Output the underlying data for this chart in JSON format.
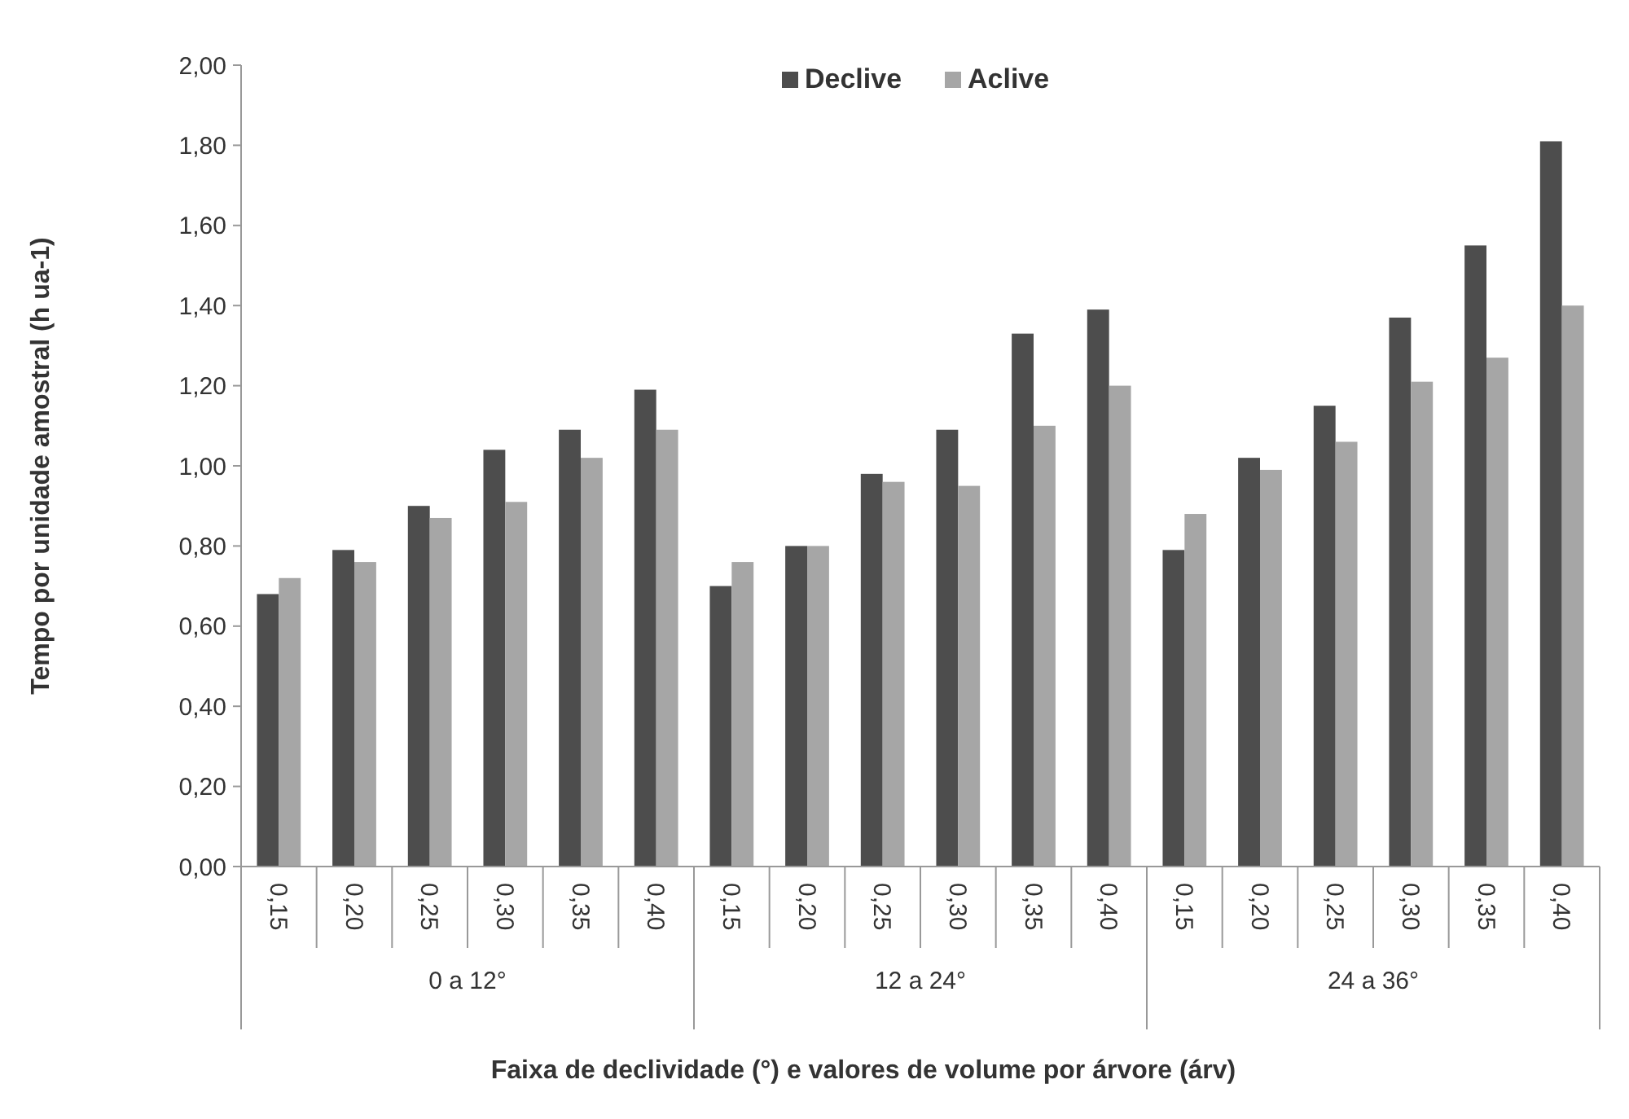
{
  "chart_data": {
    "type": "bar",
    "xlabel": "Faixa de declividade (°) e valores de volume por árvore (árv)",
    "ylabel": "Tempo por unidade amostral (h ua-1)",
    "categories": [
      "0,15",
      "0,20",
      "0,25",
      "0,30",
      "0,35",
      "0,40",
      "0,15",
      "0,20",
      "0,25",
      "0,30",
      "0,35",
      "0,40",
      "0,15",
      "0,20",
      "0,25",
      "0,30",
      "0,35",
      "0,40"
    ],
    "annotations": [
      "0 a 12°",
      "12 a 24°",
      "24 a 36°"
    ],
    "series": [
      {
        "name": "Declive",
        "color": "#4d4d4d",
        "values": [
          0.68,
          0.79,
          0.9,
          1.04,
          1.09,
          1.19,
          0.7,
          0.8,
          0.98,
          1.09,
          1.33,
          1.39,
          0.79,
          1.02,
          1.15,
          1.37,
          1.55,
          1.81
        ]
      },
      {
        "name": "Aclive",
        "color": "#a6a6a6",
        "values": [
          0.72,
          0.76,
          0.87,
          0.91,
          1.02,
          1.09,
          0.76,
          0.8,
          0.96,
          0.95,
          1.1,
          1.2,
          0.88,
          0.99,
          1.06,
          1.21,
          1.27,
          1.4
        ]
      }
    ],
    "ylim": [
      0,
      2
    ],
    "yticks": [
      {
        "value": 0,
        "label": "0,00"
      },
      {
        "value": 0.2,
        "label": "0,20"
      },
      {
        "value": 0.4,
        "label": "0,40"
      },
      {
        "value": 0.6,
        "label": "0,60"
      },
      {
        "value": 0.8,
        "label": "0,80"
      },
      {
        "value": 1,
        "label": "1,00"
      },
      {
        "value": 1.2,
        "label": "1,20"
      },
      {
        "value": 1.4,
        "label": "1,40"
      },
      {
        "value": 1.6,
        "label": "1,60"
      },
      {
        "value": 1.8,
        "label": "1,80"
      },
      {
        "value": 2,
        "label": "2,00"
      }
    ],
    "grid": false,
    "legend": "top"
  }
}
